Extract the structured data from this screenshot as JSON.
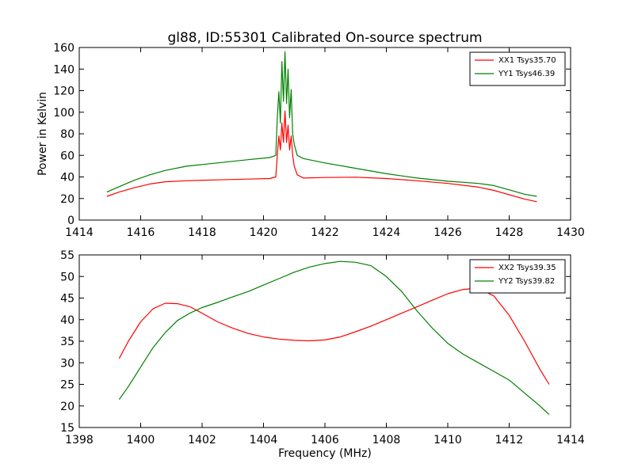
{
  "figure": {
    "title": "gl88, ID:55301 Calibrated On-source spectrum"
  },
  "chart_data": [
    {
      "type": "line",
      "title": "gl88, ID:55301 Calibrated On-source spectrum",
      "xlabel": "",
      "ylabel": "Power in Kelvin",
      "xlim": [
        1414,
        1430
      ],
      "ylim": [
        0,
        160
      ],
      "xticks": [
        1414,
        1416,
        1418,
        1420,
        1422,
        1424,
        1426,
        1428,
        1430
      ],
      "yticks": [
        0,
        20,
        40,
        60,
        80,
        100,
        120,
        140,
        160
      ],
      "grid": false,
      "legend_position": "top-right",
      "series": [
        {
          "name": "XX1 Tsys35.70",
          "color": "#ff0000",
          "x": [
            1414.9,
            1415.3,
            1415.8,
            1416.3,
            1416.8,
            1417.5,
            1418.5,
            1419.5,
            1420.2,
            1420.4,
            1420.45,
            1420.5,
            1420.55,
            1420.6,
            1420.65,
            1420.7,
            1420.75,
            1420.8,
            1420.85,
            1420.9,
            1420.95,
            1421.0,
            1421.1,
            1421.3,
            1422.0,
            1423.0,
            1424.0,
            1425.0,
            1426.0,
            1427.0,
            1427.5,
            1428.0,
            1428.5,
            1428.9
          ],
          "y": [
            22,
            26,
            30,
            33.5,
            35.5,
            36.5,
            37.3,
            38,
            38.5,
            40,
            60,
            78,
            65,
            90,
            72,
            101,
            72,
            88,
            65,
            78,
            60,
            50,
            42,
            39,
            39.5,
            39.8,
            38.5,
            36.5,
            34,
            30.5,
            27.5,
            23.5,
            19.5,
            17
          ]
        },
        {
          "name": "YY1 Tsys46.39",
          "color": "#008000",
          "x": [
            1414.9,
            1415.3,
            1415.8,
            1416.3,
            1416.8,
            1417.5,
            1418.5,
            1419.5,
            1420.2,
            1420.4,
            1420.45,
            1420.5,
            1420.55,
            1420.6,
            1420.65,
            1420.7,
            1420.75,
            1420.8,
            1420.85,
            1420.9,
            1420.95,
            1421.0,
            1421.1,
            1421.3,
            1422.0,
            1423.0,
            1424.0,
            1425.0,
            1426.0,
            1427.0,
            1427.5,
            1428.0,
            1428.5,
            1428.9
          ],
          "y": [
            26,
            31,
            37,
            42,
            46,
            50,
            53,
            56,
            58,
            60,
            95,
            119,
            90,
            147,
            110,
            156,
            108,
            140,
            95,
            121,
            80,
            70,
            60,
            57,
            53,
            48,
            43,
            39,
            36,
            34,
            32,
            28,
            24,
            22
          ]
        }
      ]
    },
    {
      "type": "line",
      "title": "",
      "xlabel": "Frequency (MHz)",
      "ylabel": "",
      "xlim": [
        1398,
        1414
      ],
      "ylim": [
        15,
        55
      ],
      "xticks": [
        1398,
        1400,
        1402,
        1404,
        1406,
        1408,
        1410,
        1412,
        1414
      ],
      "yticks": [
        15,
        20,
        25,
        30,
        35,
        40,
        45,
        50,
        55
      ],
      "grid": false,
      "legend_position": "top-right",
      "series": [
        {
          "name": "XX2 Tsys39.35",
          "color": "#ff0000",
          "x": [
            1399.3,
            1399.6,
            1400.0,
            1400.4,
            1400.8,
            1401.2,
            1401.6,
            1402.0,
            1402.5,
            1403.0,
            1403.5,
            1404.0,
            1404.5,
            1405.0,
            1405.5,
            1406.0,
            1406.5,
            1407.0,
            1407.5,
            1408.0,
            1408.5,
            1409.0,
            1409.5,
            1410.0,
            1410.5,
            1411.0,
            1411.5,
            1412.0,
            1412.5,
            1413.0,
            1413.3
          ],
          "y": [
            31,
            35,
            39.5,
            42.5,
            43.8,
            43.7,
            43,
            41.5,
            39.5,
            38,
            36.8,
            36,
            35.5,
            35.2,
            35.1,
            35.3,
            36,
            37.2,
            38.5,
            40,
            41.5,
            43,
            44.5,
            46,
            47,
            47.3,
            45.5,
            41,
            35,
            28.5,
            25
          ]
        },
        {
          "name": "YY2 Tsys39.82",
          "color": "#008000",
          "x": [
            1399.3,
            1399.6,
            1400.0,
            1400.4,
            1400.8,
            1401.2,
            1401.6,
            1402.0,
            1402.5,
            1403.0,
            1403.5,
            1404.0,
            1404.5,
            1405.0,
            1405.5,
            1406.0,
            1406.5,
            1407.0,
            1407.5,
            1408.0,
            1408.5,
            1409.0,
            1409.5,
            1410.0,
            1410.5,
            1411.0,
            1411.5,
            1412.0,
            1412.5,
            1413.0,
            1413.3
          ],
          "y": [
            21.5,
            24.5,
            29,
            33.5,
            37,
            39.8,
            41.5,
            42.8,
            44,
            45.3,
            46.5,
            48,
            49.5,
            51,
            52.2,
            53,
            53.5,
            53.3,
            52.5,
            50,
            46.5,
            42,
            38,
            34.5,
            32,
            30,
            28,
            26,
            23,
            20,
            18
          ]
        }
      ]
    }
  ]
}
